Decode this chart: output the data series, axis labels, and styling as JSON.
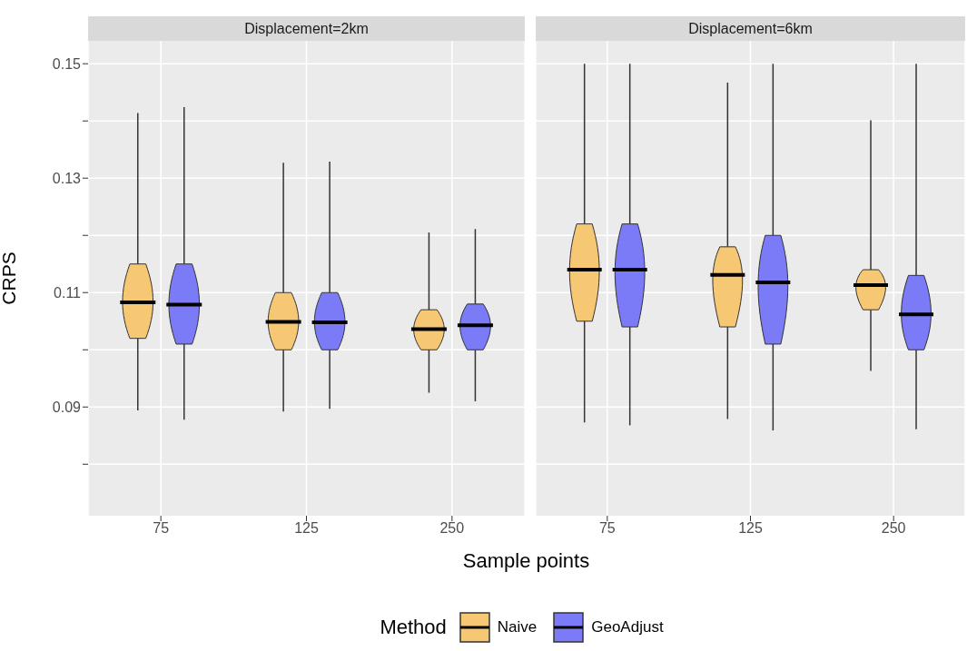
{
  "chart_data": [
    {
      "type": "box",
      "title": "Displacement=2km",
      "xlabel": "Sample points",
      "ylabel": "CRPS",
      "legend_title": "Method",
      "legend": "bottom",
      "grid": true,
      "categories": [
        "75",
        "125",
        "250"
      ],
      "ylim": [
        0.071,
        0.154
      ],
      "yticks": [
        {
          "value": 0.08,
          "label": null
        },
        0.09,
        {
          "value": 0.1,
          "label": null
        },
        0.11,
        {
          "value": 0.12,
          "label": null
        },
        0.13,
        {
          "value": 0.14,
          "label": null
        },
        0.15
      ],
      "series": [
        {
          "name": "Naive",
          "color": "#f7c873",
          "boxes": [
            {
              "low": 0.0894,
              "q1": 0.102,
              "median": 0.1083,
              "q3": 0.115,
              "high": 0.1414
            },
            {
              "low": 0.0892,
              "q1": 0.1,
              "median": 0.1049,
              "q3": 0.11,
              "high": 0.1327
            },
            {
              "low": 0.0925,
              "q1": 0.1,
              "median": 0.1036,
              "q3": 0.107,
              "high": 0.1205
            }
          ]
        },
        {
          "name": "GeoAdjust",
          "color": "#7b7bf7",
          "boxes": [
            {
              "low": 0.0878,
              "q1": 0.101,
              "median": 0.1079,
              "q3": 0.115,
              "high": 0.1424
            },
            {
              "low": 0.0897,
              "q1": 0.1,
              "median": 0.1048,
              "q3": 0.11,
              "high": 0.1329
            },
            {
              "low": 0.091,
              "q1": 0.1,
              "median": 0.1043,
              "q3": 0.108,
              "high": 0.1211
            }
          ]
        }
      ]
    },
    {
      "type": "box",
      "title": "Displacement=6km",
      "tick_labels": "x",
      "grid": true,
      "categories": [
        "75",
        "125",
        "250"
      ],
      "ylim": [
        0.071,
        0.154
      ],
      "yticks": [
        {
          "value": 0.08,
          "label": null
        },
        0.09,
        {
          "value": 0.1,
          "label": null
        },
        0.11,
        {
          "value": 0.12,
          "label": null
        },
        0.13,
        {
          "value": 0.14,
          "label": null
        },
        0.15
      ],
      "series": [
        {
          "color": "#f7c873",
          "boxes": [
            {
              "low": 0.0873,
              "q1": 0.105,
              "median": 0.114,
              "q3": 0.122,
              "high": 0.15
            },
            {
              "low": 0.0879,
              "q1": 0.104,
              "median": 0.1131,
              "q3": 0.118,
              "high": 0.1467
            },
            {
              "low": 0.0963,
              "q1": 0.107,
              "median": 0.1113,
              "q3": 0.114,
              "high": 0.1401
            }
          ]
        },
        {
          "color": "#7b7bf7",
          "boxes": [
            {
              "low": 0.0868,
              "q1": 0.104,
              "median": 0.114,
              "q3": 0.122,
              "high": 0.15
            },
            {
              "low": 0.0859,
              "q1": 0.101,
              "median": 0.1118,
              "q3": 0.12,
              "high": 0.15
            },
            {
              "low": 0.0861,
              "q1": 0.1,
              "median": 0.1062,
              "q3": 0.113,
              "high": 0.15
            }
          ]
        }
      ]
    }
  ]
}
